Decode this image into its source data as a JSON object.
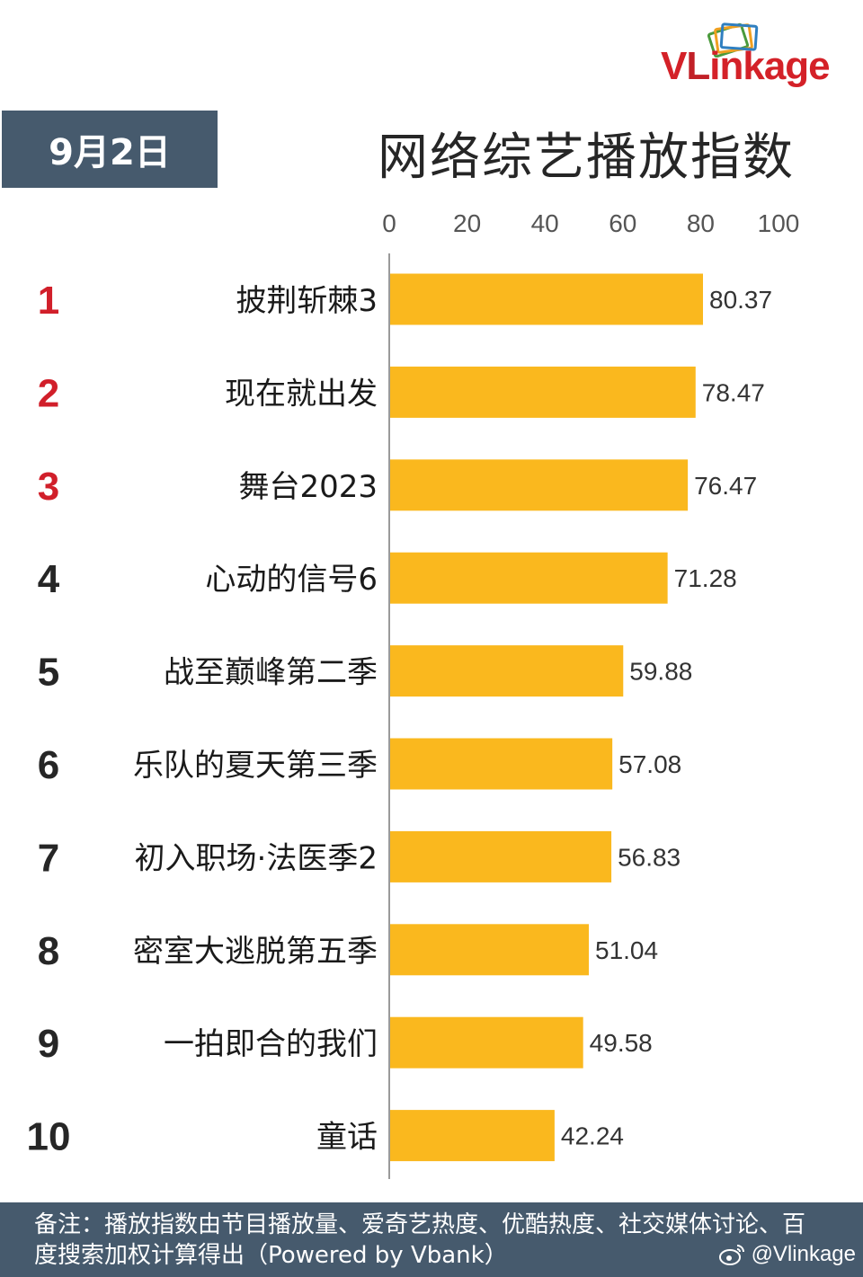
{
  "brand": {
    "logo_text_v": "V",
    "logo_text_l": "L",
    "logo_text_rest": "inkage",
    "logo_color": "#d42128"
  },
  "header": {
    "date": "9月2日",
    "date_bg": "#465a6d"
  },
  "colors": {
    "bar": "#fab81e",
    "rank_top": "#d11f2a",
    "rank_other": "#262626",
    "axis": "#9a9a9a"
  },
  "chart_data": {
    "type": "bar",
    "orientation": "horizontal",
    "title": "网络综艺播放指数",
    "xlim": [
      0,
      100
    ],
    "xticks": [
      0,
      20,
      40,
      60,
      80,
      100
    ],
    "ranks": [
      "1",
      "2",
      "3",
      "4",
      "5",
      "6",
      "7",
      "8",
      "9",
      "10"
    ],
    "categories": [
      "披荆斩棘3",
      "现在就出发",
      "舞台2023",
      "心动的信号6",
      "战至巅峰第二季",
      "乐队的夏天第三季",
      "初入职场·法医季2",
      "密室大逃脱第五季",
      "一拍即合的我们",
      "童话"
    ],
    "values": [
      80.37,
      78.47,
      76.47,
      71.28,
      59.88,
      57.08,
      56.83,
      51.04,
      49.58,
      42.24
    ],
    "value_labels": [
      "80.37",
      "78.47",
      "76.47",
      "71.28",
      "59.88",
      "57.08",
      "56.83",
      "51.04",
      "49.58",
      "42.24"
    ],
    "axis_position": "top"
  },
  "footer": {
    "note": "备注：播放指数由节目播放量、爱奇艺热度、优酷热度、社交媒体讨论、百度搜索加权计算得出（Powered by Vbank）",
    "handle": "@Vlinkage"
  }
}
